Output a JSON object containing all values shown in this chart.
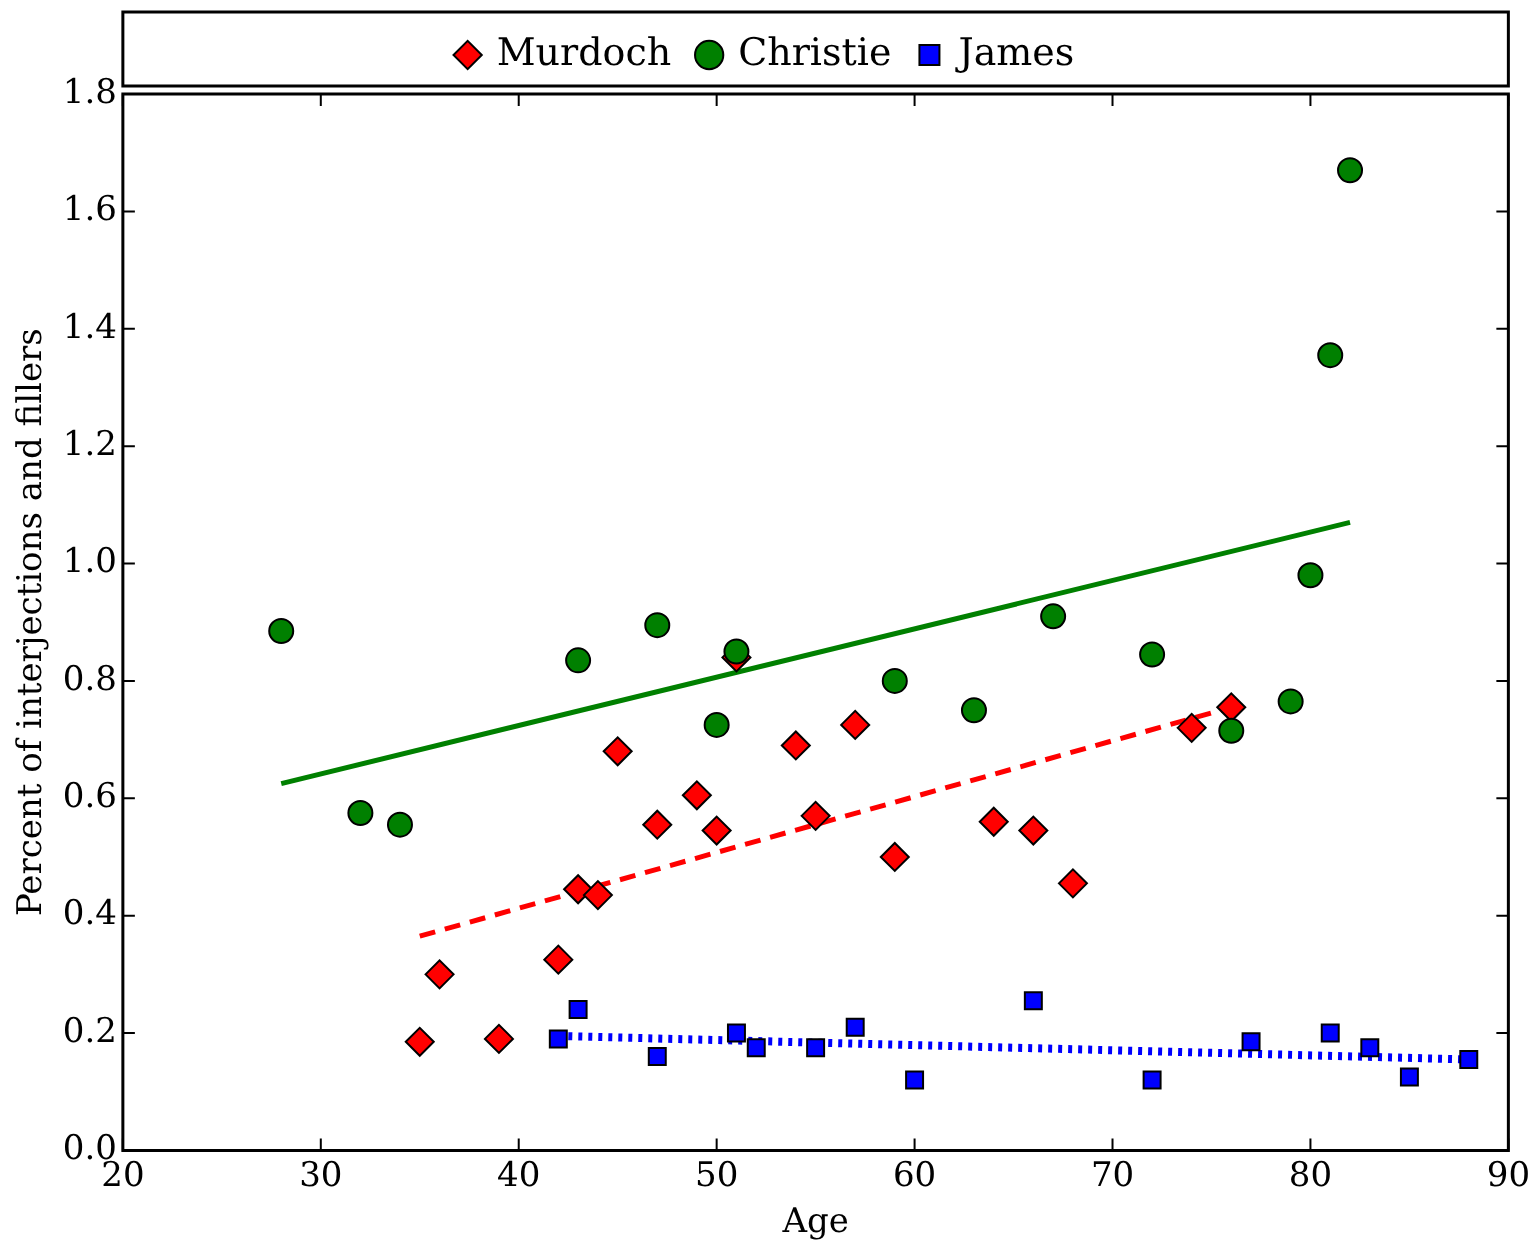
{
  "chart_data": {
    "type": "scatter",
    "xlabel": "Age",
    "ylabel": "Percent of interjections and fillers",
    "xlim": [
      20,
      90
    ],
    "xticks": [
      20,
      30,
      40,
      50,
      60,
      70,
      80,
      90
    ],
    "ylim": [
      0,
      1.8
    ],
    "yticks": [
      {
        "value": 0,
        "label": "0.0"
      },
      {
        "value": 0.2,
        "label": "0.2"
      },
      {
        "value": 0.4,
        "label": "0.4"
      },
      {
        "value": 0.6,
        "label": "0.6"
      },
      {
        "value": 0.8,
        "label": "0.8"
      },
      {
        "value": 1.0,
        "label": "1.0"
      },
      {
        "value": 1.2,
        "label": "1.2"
      },
      {
        "value": 1.4,
        "label": "1.4"
      },
      {
        "value": 1.6,
        "label": "1.6"
      },
      {
        "value": 1.8,
        "label": "1.8"
      }
    ],
    "grid": false,
    "legend": "top",
    "series": [
      {
        "name": "Murdoch",
        "marker": "diamond",
        "color": "#ff0000",
        "x": [
          35,
          36,
          39,
          42,
          43,
          44,
          45,
          47,
          49,
          50,
          51,
          54,
          55,
          57,
          59,
          64,
          66,
          68,
          74,
          76
        ],
        "values": [
          0.185,
          0.3,
          0.19,
          0.325,
          0.445,
          0.435,
          0.68,
          0.555,
          0.605,
          0.545,
          0.84,
          0.69,
          0.57,
          0.725,
          0.5,
          0.56,
          0.545,
          0.455,
          0.72,
          0.755
        ]
      },
      {
        "type": "line",
        "marker": "none",
        "line_style": "dashed",
        "color": "#ff0000",
        "x": [
          35,
          76
        ],
        "values": [
          0.365,
          0.755
        ]
      },
      {
        "name": "Christie",
        "marker": "circle",
        "color": "#008000",
        "x": [
          28,
          32,
          34,
          43,
          47,
          50,
          51,
          59,
          63,
          67,
          72,
          76,
          79,
          80,
          81,
          82
        ],
        "values": [
          0.885,
          0.575,
          0.555,
          0.835,
          0.895,
          0.725,
          0.85,
          0.8,
          0.75,
          0.91,
          0.845,
          0.715,
          0.765,
          0.98,
          1.355,
          1.67
        ]
      },
      {
        "type": "line",
        "marker": "none",
        "line_style": "solid",
        "color": "#008000",
        "x": [
          28,
          82
        ],
        "values": [
          0.625,
          1.07
        ]
      },
      {
        "name": "James",
        "marker": "square",
        "color": "#0000ff",
        "x": [
          42,
          43,
          47,
          51,
          52,
          55,
          57,
          60,
          66,
          72,
          77,
          81,
          83,
          85,
          88
        ],
        "values": [
          0.19,
          0.24,
          0.16,
          0.2,
          0.175,
          0.175,
          0.21,
          0.12,
          0.255,
          0.12,
          0.185,
          0.2,
          0.175,
          0.125,
          0.155
        ]
      },
      {
        "type": "line",
        "marker": "none",
        "line_style": "dotted",
        "color": "#0000ff",
        "x": [
          42,
          88
        ],
        "values": [
          0.195,
          0.155
        ]
      }
    ]
  }
}
